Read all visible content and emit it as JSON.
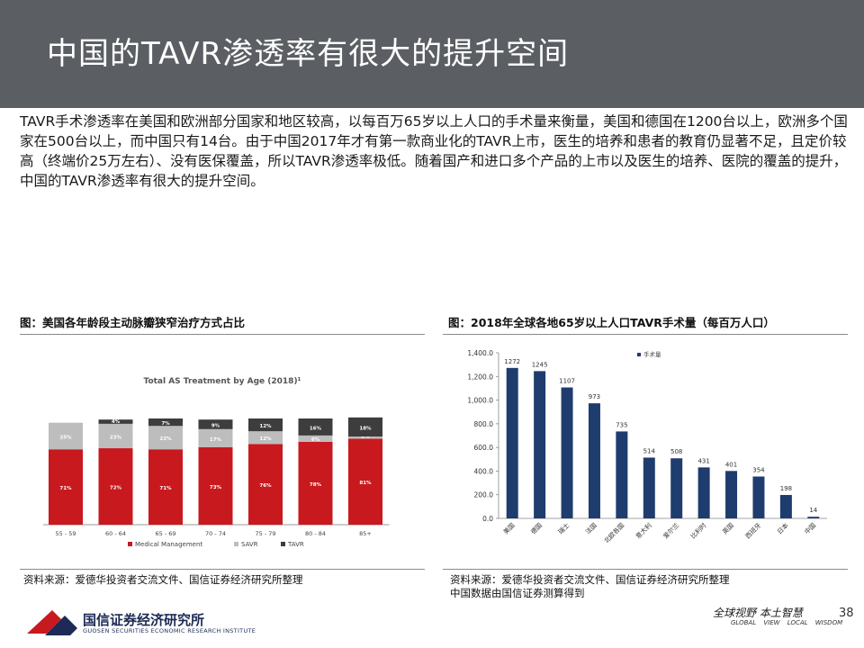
{
  "title": "中国的TAVR渗透率有很大的提升空间",
  "intro": "TAVR手术渗透率在美国和欧洲部分国家和地区较高，以每百万65岁以上人口的手术量来衡量，美国和德国在1200台以上，欧洲多个国家在500台以上，而中国只有14台。由于中国2017年才有第一款商业化的TAVR上市，医生的培养和患者的教育仍显著不足，且定价较高（终端价25万左右）、没有医保覆盖，所以TAVR渗透率极低。随着国产和进口多个产品的上市以及医生的培养、医院的覆盖的提升，中国的TAVR渗透率有很大的提升空间。",
  "left": {
    "caption": "图：美国各年龄段主动脉瓣狭窄治疗方式占比",
    "source": "资料来源：爱德华投资者交流文件、国信证券经济研究所整理"
  },
  "right": {
    "caption": "图：2018年全球各地65岁以上人口TAVR手术量（每百万人口）",
    "source_lines": [
      "资料来源：爱德华投资者交流文件、国信证券经济研究所整理",
      "中国数据由国信证券测算得到"
    ]
  },
  "chart_data": [
    {
      "type": "bar",
      "stacked": true,
      "title": "Total AS Treatment by Age (2018)¹",
      "categories": [
        "55 - 59",
        "60 - 64",
        "65 - 69",
        "70 - 74",
        "75 - 79",
        "80 - 84",
        "85+"
      ],
      "series": [
        {
          "name": "Medical Management",
          "color": "#c8191e",
          "labels": [
            "71%",
            "72%",
            "71%",
            "73%",
            "76%",
            "78%",
            "81%"
          ],
          "values": [
            71,
            72,
            71,
            73,
            76,
            78,
            81
          ]
        },
        {
          "name": "SAVR",
          "color": "#bdbdbd",
          "labels": [
            "25%",
            "23%",
            "22%",
            "17%",
            "12%",
            "6%",
            "2%"
          ],
          "values": [
            25,
            23,
            22,
            17,
            12,
            6,
            2
          ]
        },
        {
          "name": "TAVR",
          "color": "#3d3d3d",
          "labels": [
            "",
            "4%",
            "7%",
            "9%",
            "12%",
            "16%",
            "18%"
          ],
          "values": [
            0,
            4,
            7,
            9,
            12,
            16,
            18
          ]
        }
      ],
      "legend": "bottom"
    },
    {
      "type": "bar",
      "categories": [
        "美国",
        "德国",
        "瑞士",
        "法国",
        "北欧各国",
        "意大利",
        "爱尔兰",
        "比利时",
        "英国",
        "西班牙",
        "日本",
        "中国"
      ],
      "values": [
        1272,
        1245,
        1107,
        973,
        735,
        514,
        508,
        431,
        401,
        354,
        198,
        14
      ],
      "ylim": [
        0,
        1400
      ],
      "yticks": [
        "0.0",
        "200.0",
        "400.0",
        "600.0",
        "800.0",
        "1,000.0",
        "1,200.0",
        "1,400.0"
      ],
      "series_name": "手术量",
      "color": "#1f3c6e",
      "legend": "top-right"
    }
  ],
  "footer": {
    "org_name": "国信证券经济研究所",
    "org_sub": "GUOSEN SECURITIES ECONOMIC RESEARCH INSTITUTE",
    "slogan": "全球视野 本土智慧",
    "slogan_en": "GLOBAL VIEW LOCAL WISDOM",
    "page": "38"
  }
}
